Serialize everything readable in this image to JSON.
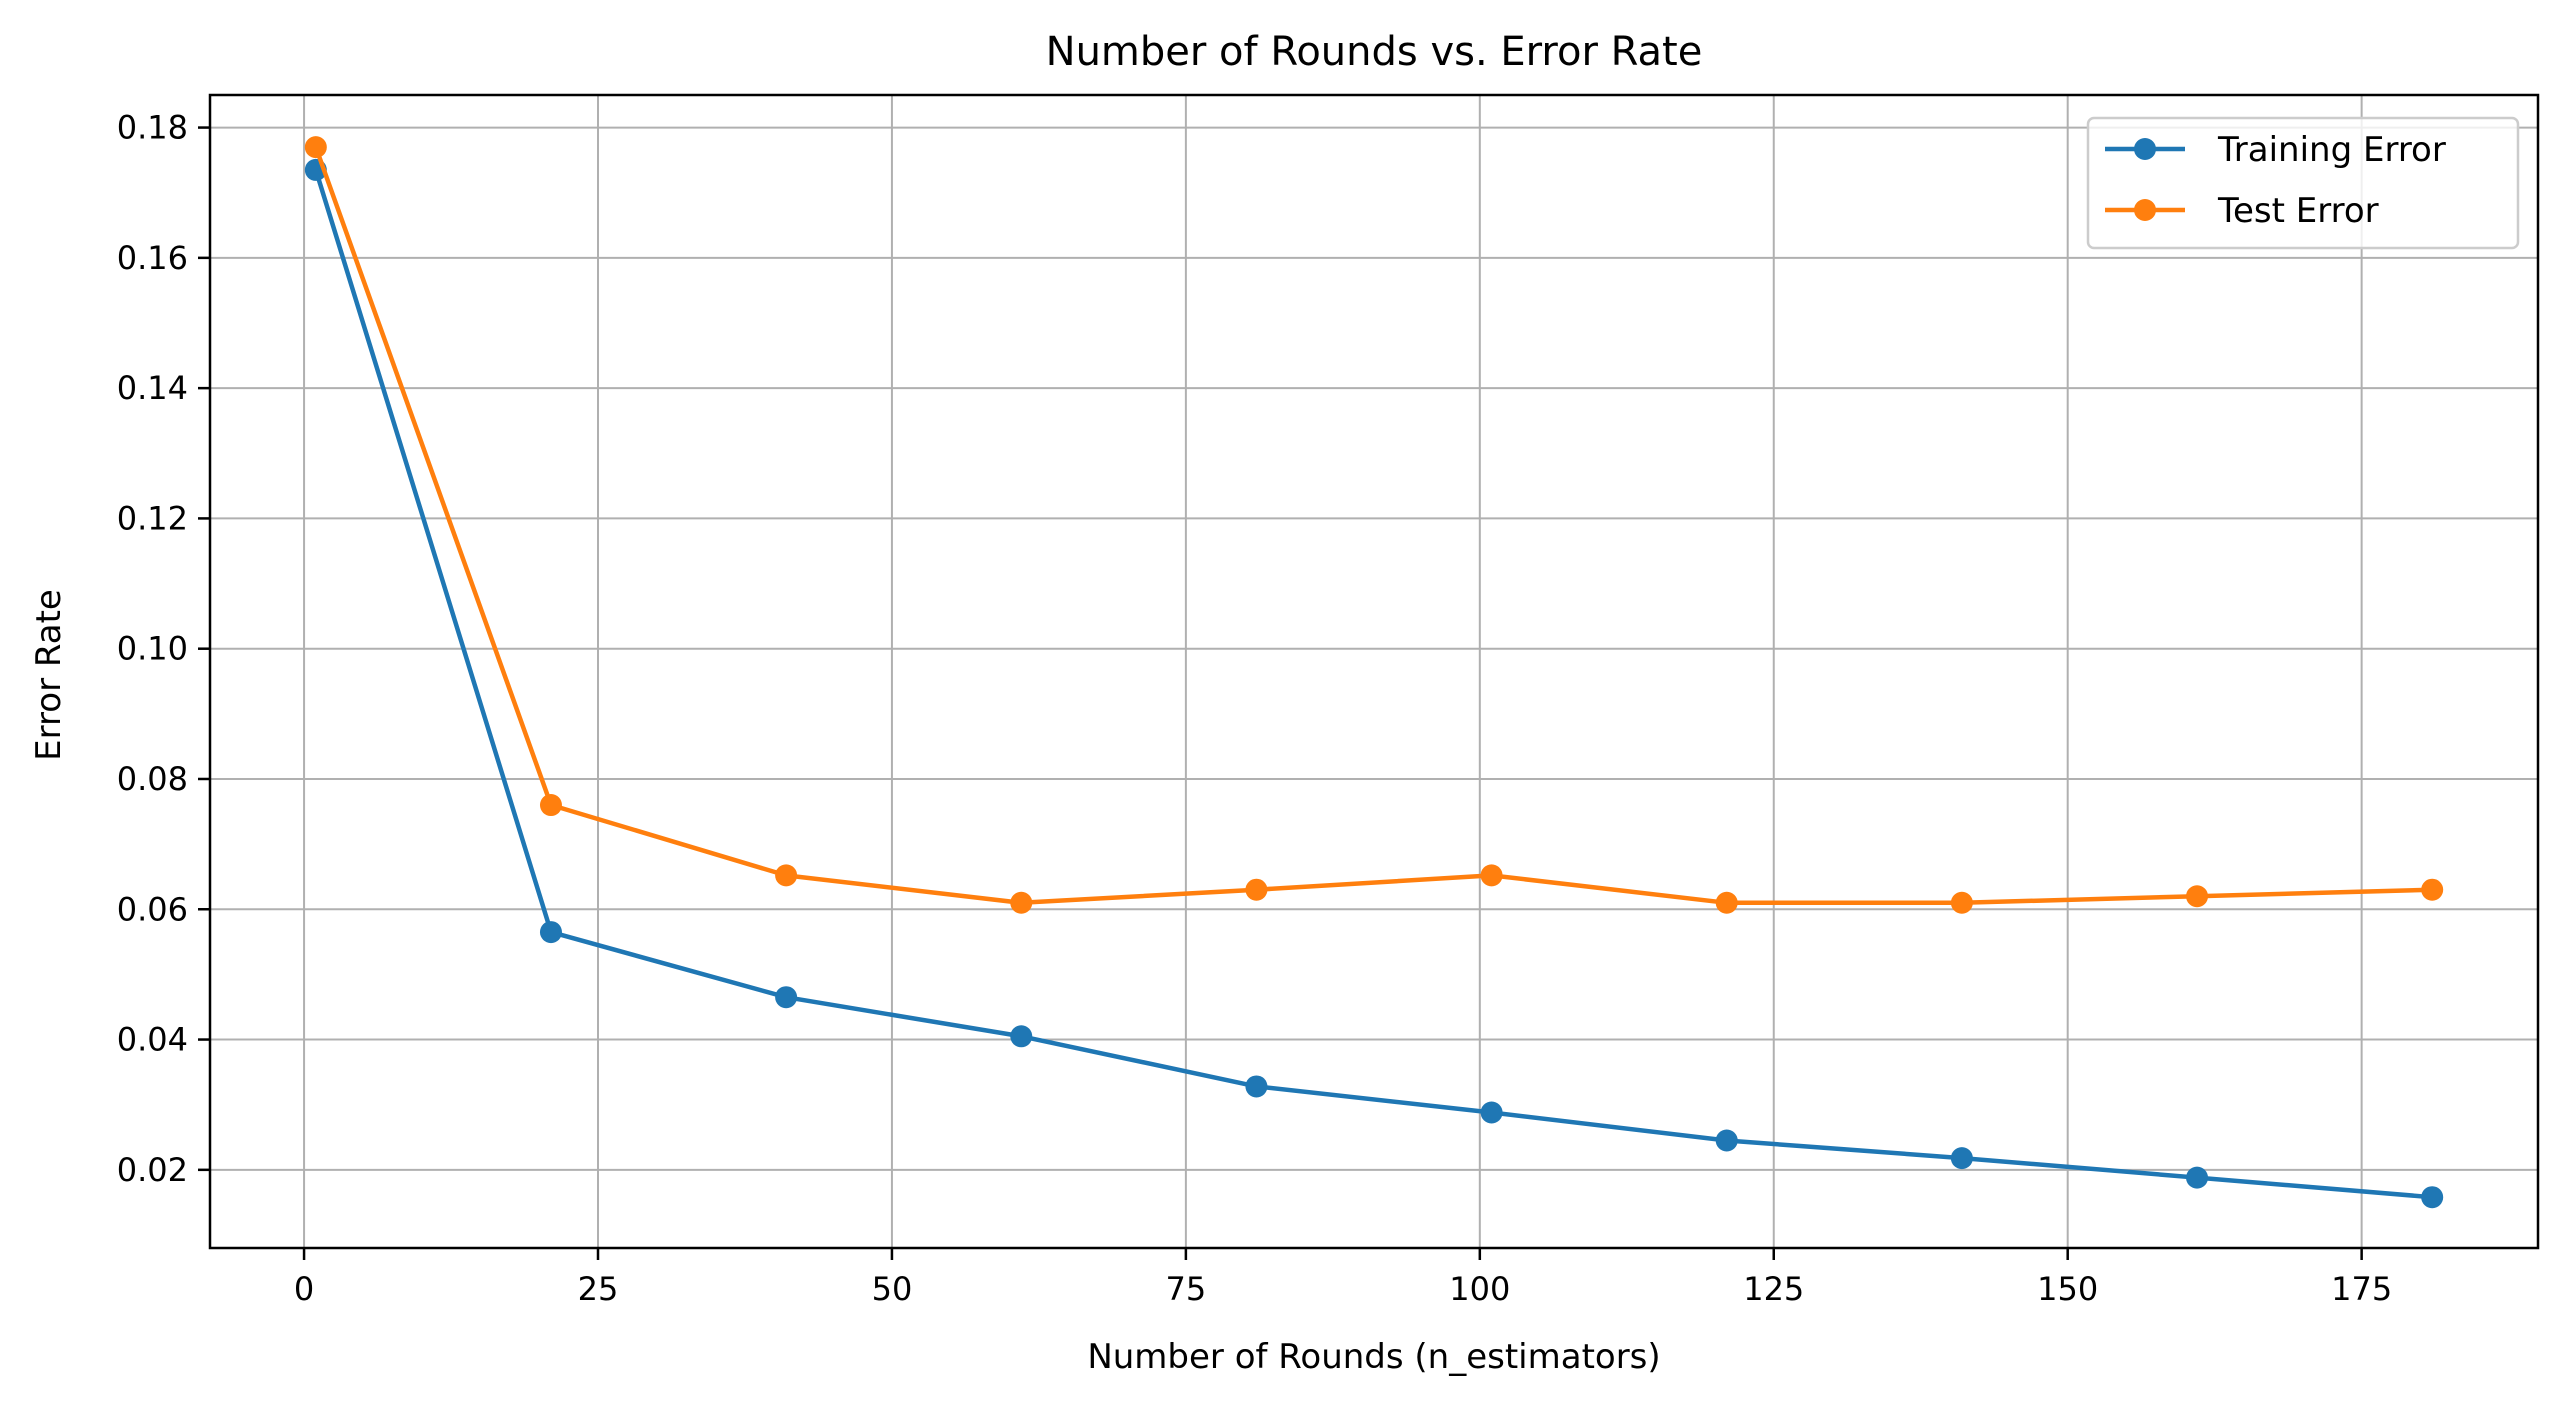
{
  "chart_data": {
    "type": "line",
    "title": "Number of Rounds vs. Error Rate",
    "xlabel": "Number of Rounds (n_estimators)",
    "ylabel": "Error Rate",
    "xlim": [
      -8,
      190
    ],
    "ylim": [
      0.008,
      0.185
    ],
    "xticks": [
      0,
      25,
      50,
      75,
      100,
      125,
      150,
      175
    ],
    "yticks": [
      0.02,
      0.04,
      0.06,
      0.08,
      0.1,
      0.12,
      0.14,
      0.16,
      0.18
    ],
    "ytick_labels": [
      "0.02",
      "0.04",
      "0.06",
      "0.08",
      "0.10",
      "0.12",
      "0.14",
      "0.16",
      "0.18"
    ],
    "grid": true,
    "legend_position": "top-right",
    "x": [
      1,
      21,
      41,
      61,
      81,
      101,
      121,
      141,
      161,
      181
    ],
    "series": [
      {
        "name": "Training Error",
        "color": "#1f77b4",
        "marker": "circle",
        "values": [
          0.1735,
          0.0565,
          0.0465,
          0.0405,
          0.0328,
          0.0288,
          0.0245,
          0.0218,
          0.0188,
          0.0158
        ]
      },
      {
        "name": "Test Error",
        "color": "#ff7f0e",
        "marker": "circle",
        "values": [
          0.177,
          0.076,
          0.0652,
          0.061,
          0.063,
          0.0652,
          0.061,
          0.061,
          0.062,
          0.063
        ]
      }
    ]
  }
}
